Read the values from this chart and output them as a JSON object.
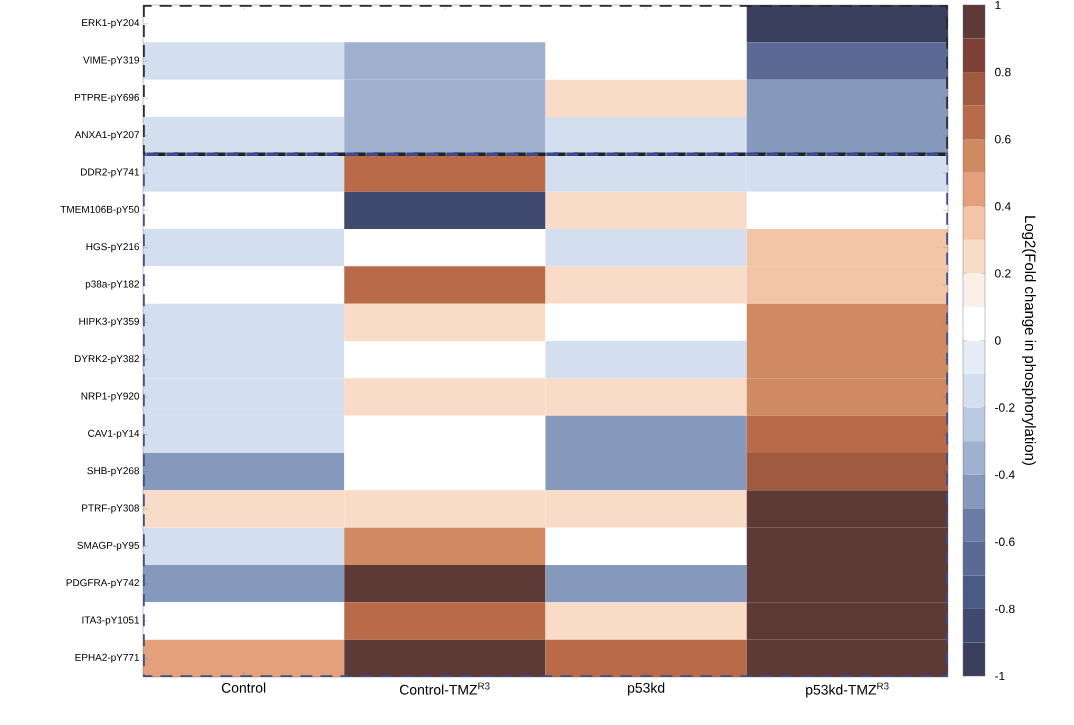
{
  "chart_data": {
    "type": "heatmap",
    "categories": [
      "Control",
      "Control-TMZ$^{R3}$",
      "p53kd",
      "p53kd-TMZ$^{R3}$"
    ],
    "y_categories": [
      "ERK1-pY204",
      "VIME-pY319",
      "PTPRE-pY696",
      "ANXA1-pY207",
      "DDR2-pY741",
      "TMEM106B-pY50",
      "HGS-pY216",
      "p38a-pY182",
      "HIPK3-pY359",
      "DYRK2-pY382",
      "NRP1-pY920",
      "CAV1-pY14",
      "SHB-pY268",
      "PTRF-pY308",
      "SMAGP-pY95",
      "PDGFRA-pY742",
      "ITA3-pY1051",
      "EPHA2-pY771"
    ],
    "cells": [
      [
        0.05,
        0.05,
        0.05,
        -0.95
      ],
      [
        -0.15,
        -0.35,
        0.05,
        -0.65
      ],
      [
        0.05,
        -0.35,
        0.25,
        -0.45
      ],
      [
        -0.15,
        -0.35,
        -0.15,
        -0.45
      ],
      [
        -0.15,
        0.65,
        -0.15,
        -0.15
      ],
      [
        0.05,
        -0.85,
        0.25,
        0.05
      ],
      [
        -0.15,
        0.05,
        -0.15,
        0.35
      ],
      [
        0.05,
        0.65,
        0.25,
        0.35
      ],
      [
        -0.15,
        0.25,
        0.05,
        0.55
      ],
      [
        -0.15,
        0.05,
        -0.15,
        0.55
      ],
      [
        -0.15,
        0.25,
        0.25,
        0.55
      ],
      [
        -0.15,
        0.05,
        -0.45,
        0.65
      ],
      [
        -0.45,
        0.05,
        -0.45,
        0.75
      ],
      [
        0.25,
        0.25,
        0.25,
        0.95
      ],
      [
        -0.15,
        0.55,
        0.05,
        0.95
      ],
      [
        -0.45,
        0.95,
        -0.45,
        0.95
      ],
      [
        0.05,
        0.65,
        0.25,
        0.95
      ],
      [
        0.45,
        0.95,
        0.65,
        0.95
      ]
    ],
    "clim": [
      -1,
      1
    ],
    "cticks": [
      -1,
      -0.8,
      -0.6,
      -0.4,
      -0.2,
      0,
      0.2,
      0.4,
      0.6,
      0.8,
      1
    ],
    "clabel": "Log2(Fold change in phosphorylation)"
  }
}
